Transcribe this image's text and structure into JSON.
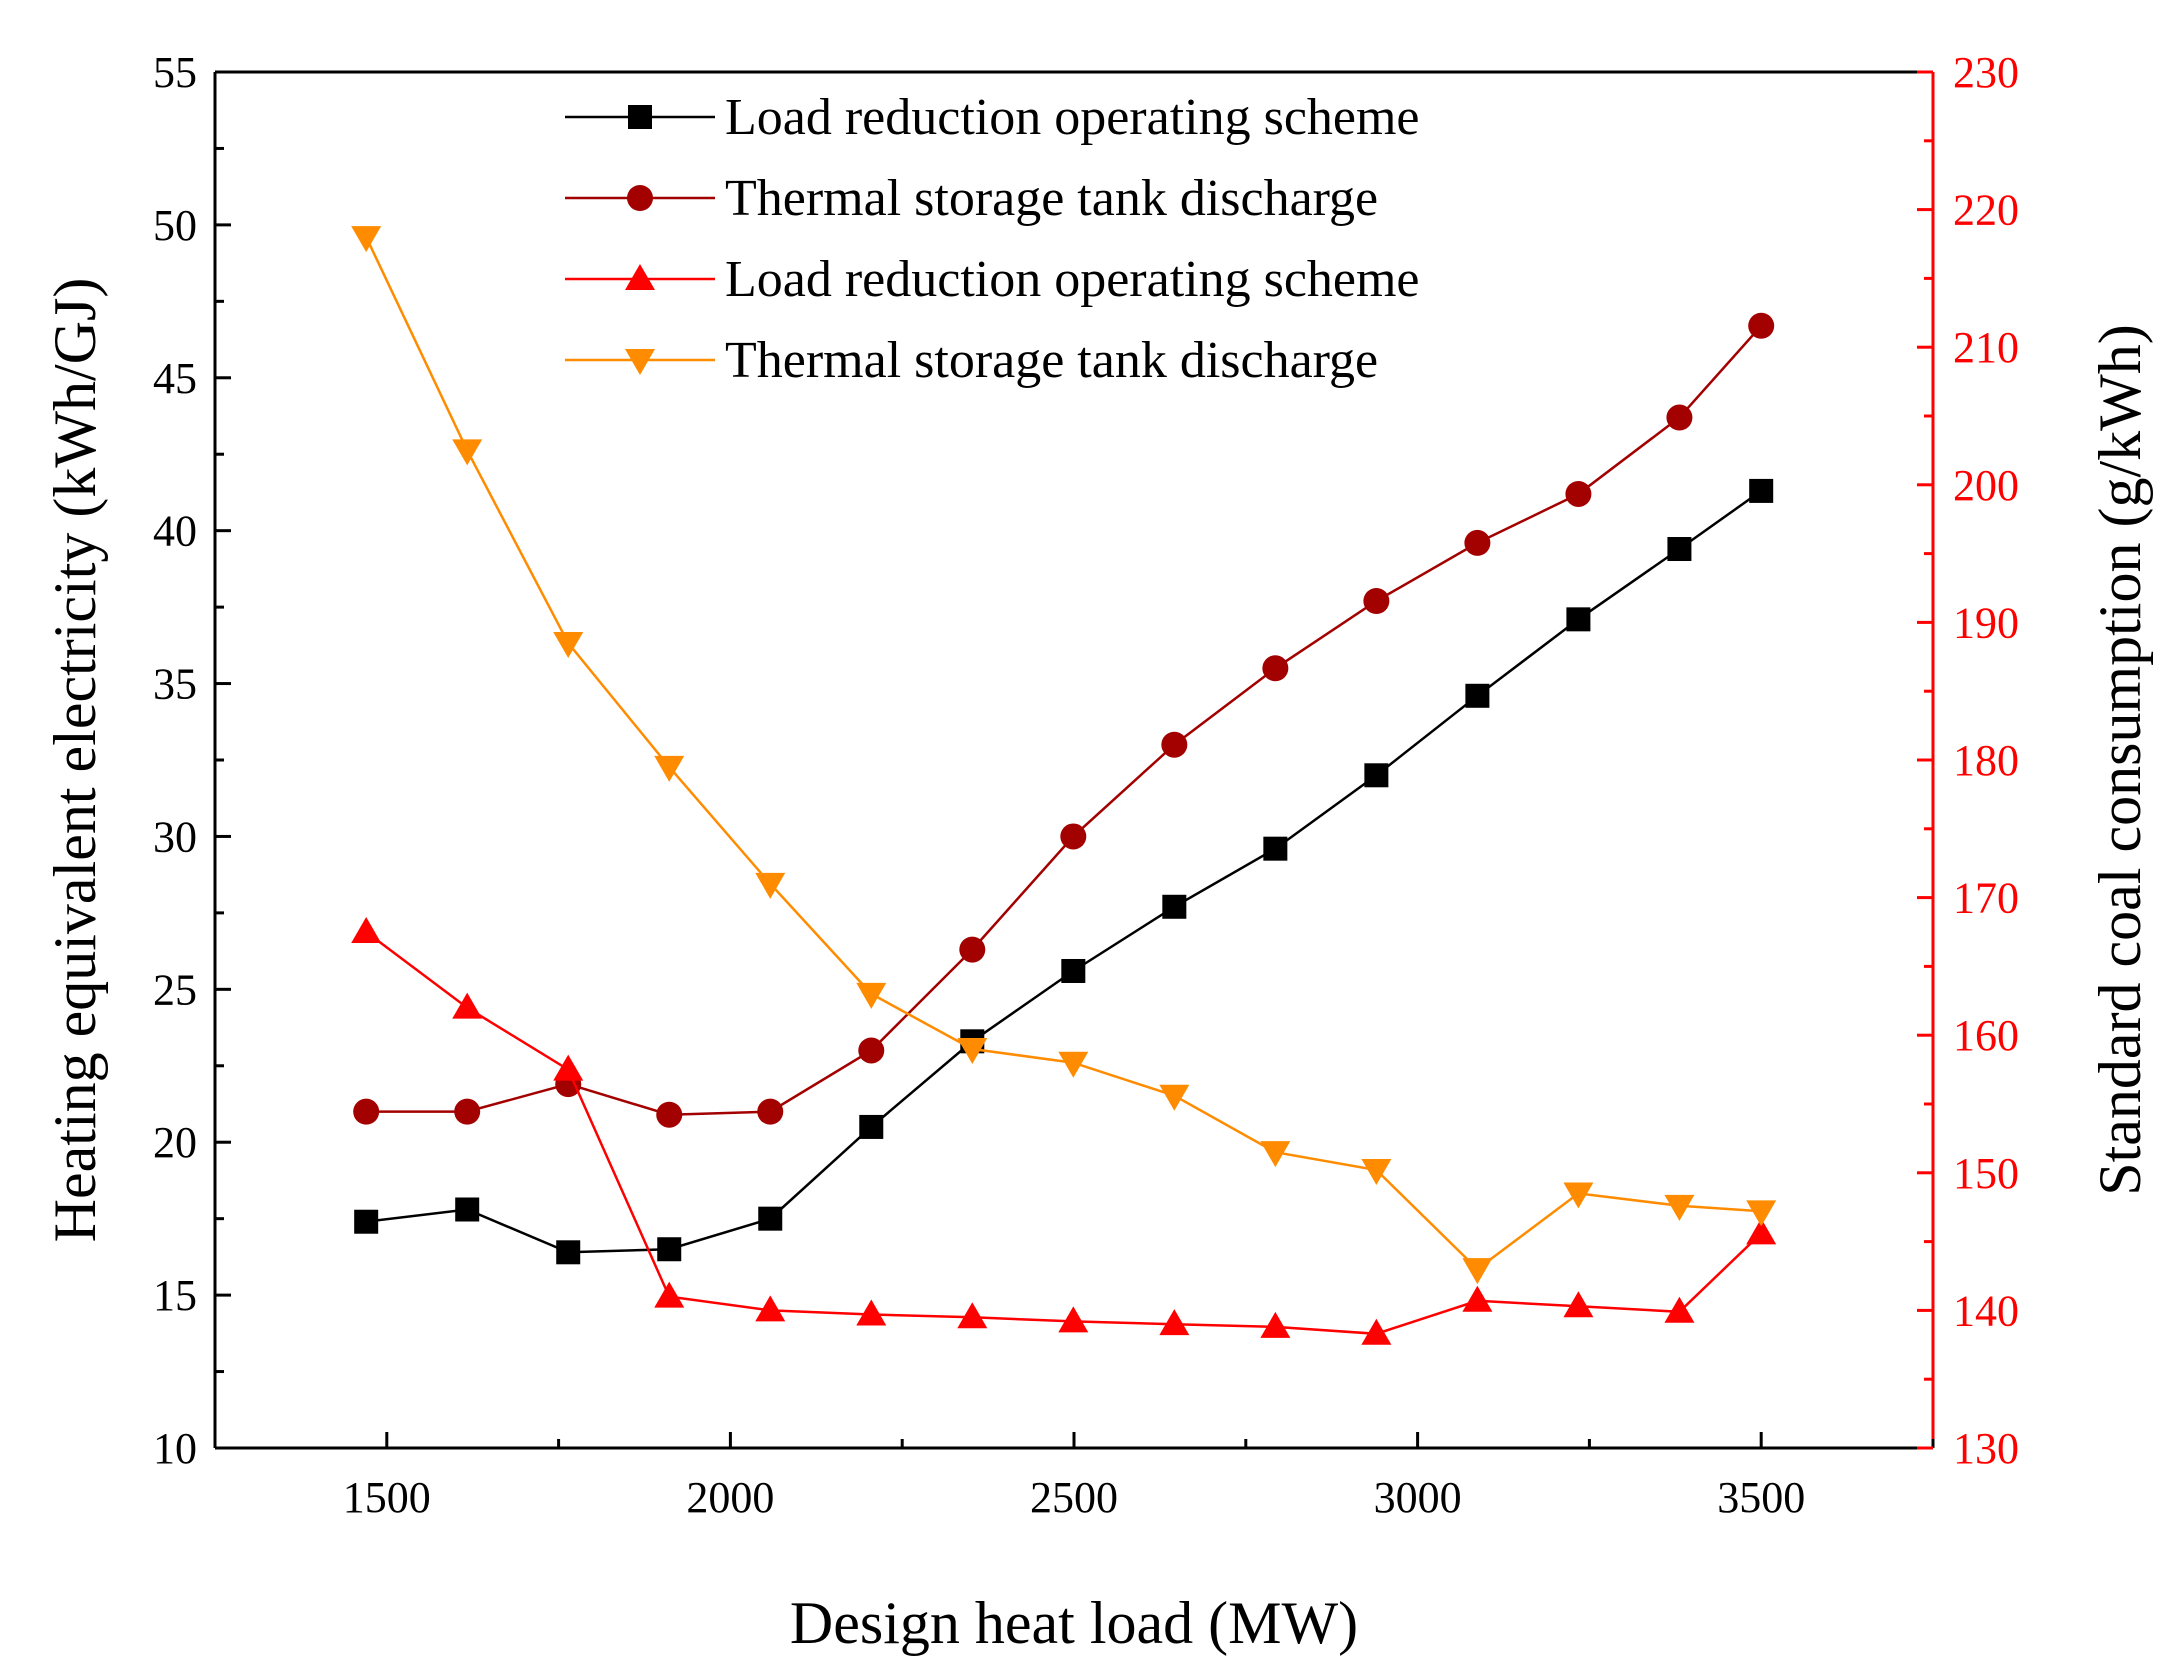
{
  "chart_data": {
    "type": "line",
    "xlabel": "Design heat load (MW)",
    "ylabel_left": "Heating equivalent electricity (kWh/GJ)",
    "ylabel_right": "Standard coal consumption (g/kWh)",
    "xlim": [
      1250,
      3750
    ],
    "ylim_left": [
      10,
      55
    ],
    "ylim_right": [
      130,
      230
    ],
    "x_ticks": [
      1500,
      2000,
      2500,
      3000,
      3500
    ],
    "y_left_ticks": [
      10,
      15,
      20,
      25,
      30,
      35,
      40,
      45,
      50,
      55
    ],
    "y_right_ticks": [
      130,
      140,
      150,
      160,
      170,
      180,
      190,
      200,
      210,
      220,
      230
    ],
    "grid": false,
    "legend_position": "top-center",
    "x": [
      1470,
      1617,
      1764,
      1911,
      2058,
      2205,
      2352,
      2499,
      2646,
      2793,
      2940,
      3087,
      3234,
      3381,
      3500
    ],
    "series": [
      {
        "name": "Load reduction operating scheme",
        "axis": "left",
        "marker": "square",
        "color": "#000000",
        "values": [
          17.4,
          17.8,
          16.4,
          16.5,
          17.5,
          20.5,
          23.3,
          25.6,
          27.7,
          29.6,
          32.0,
          34.6,
          37.1,
          39.4,
          41.3
        ]
      },
      {
        "name": "Thermal storage tank discharge",
        "axis": "left",
        "marker": "circle",
        "color": "#a30000",
        "values": [
          21.0,
          21.0,
          21.9,
          20.9,
          21.0,
          23.0,
          26.3,
          30.0,
          33.0,
          35.5,
          37.7,
          39.6,
          41.2,
          43.7,
          46.7
        ]
      },
      {
        "name": "Load reduction operating scheme",
        "axis": "right",
        "marker": "triangle-up",
        "color": "#ff0000",
        "values": [
          167.5,
          162.0,
          157.5,
          141.0,
          140.0,
          139.7,
          139.5,
          139.2,
          139.0,
          138.8,
          138.3,
          140.7,
          140.3,
          139.9,
          145.6
        ]
      },
      {
        "name": "Thermal storage tank discharge",
        "axis": "right",
        "marker": "triangle-down",
        "color": "#ff8c00",
        "values": [
          218.0,
          202.5,
          188.5,
          179.5,
          171.0,
          163.0,
          159.0,
          158.0,
          155.6,
          151.5,
          150.2,
          143.0,
          148.5,
          147.6,
          147.2
        ]
      }
    ]
  }
}
